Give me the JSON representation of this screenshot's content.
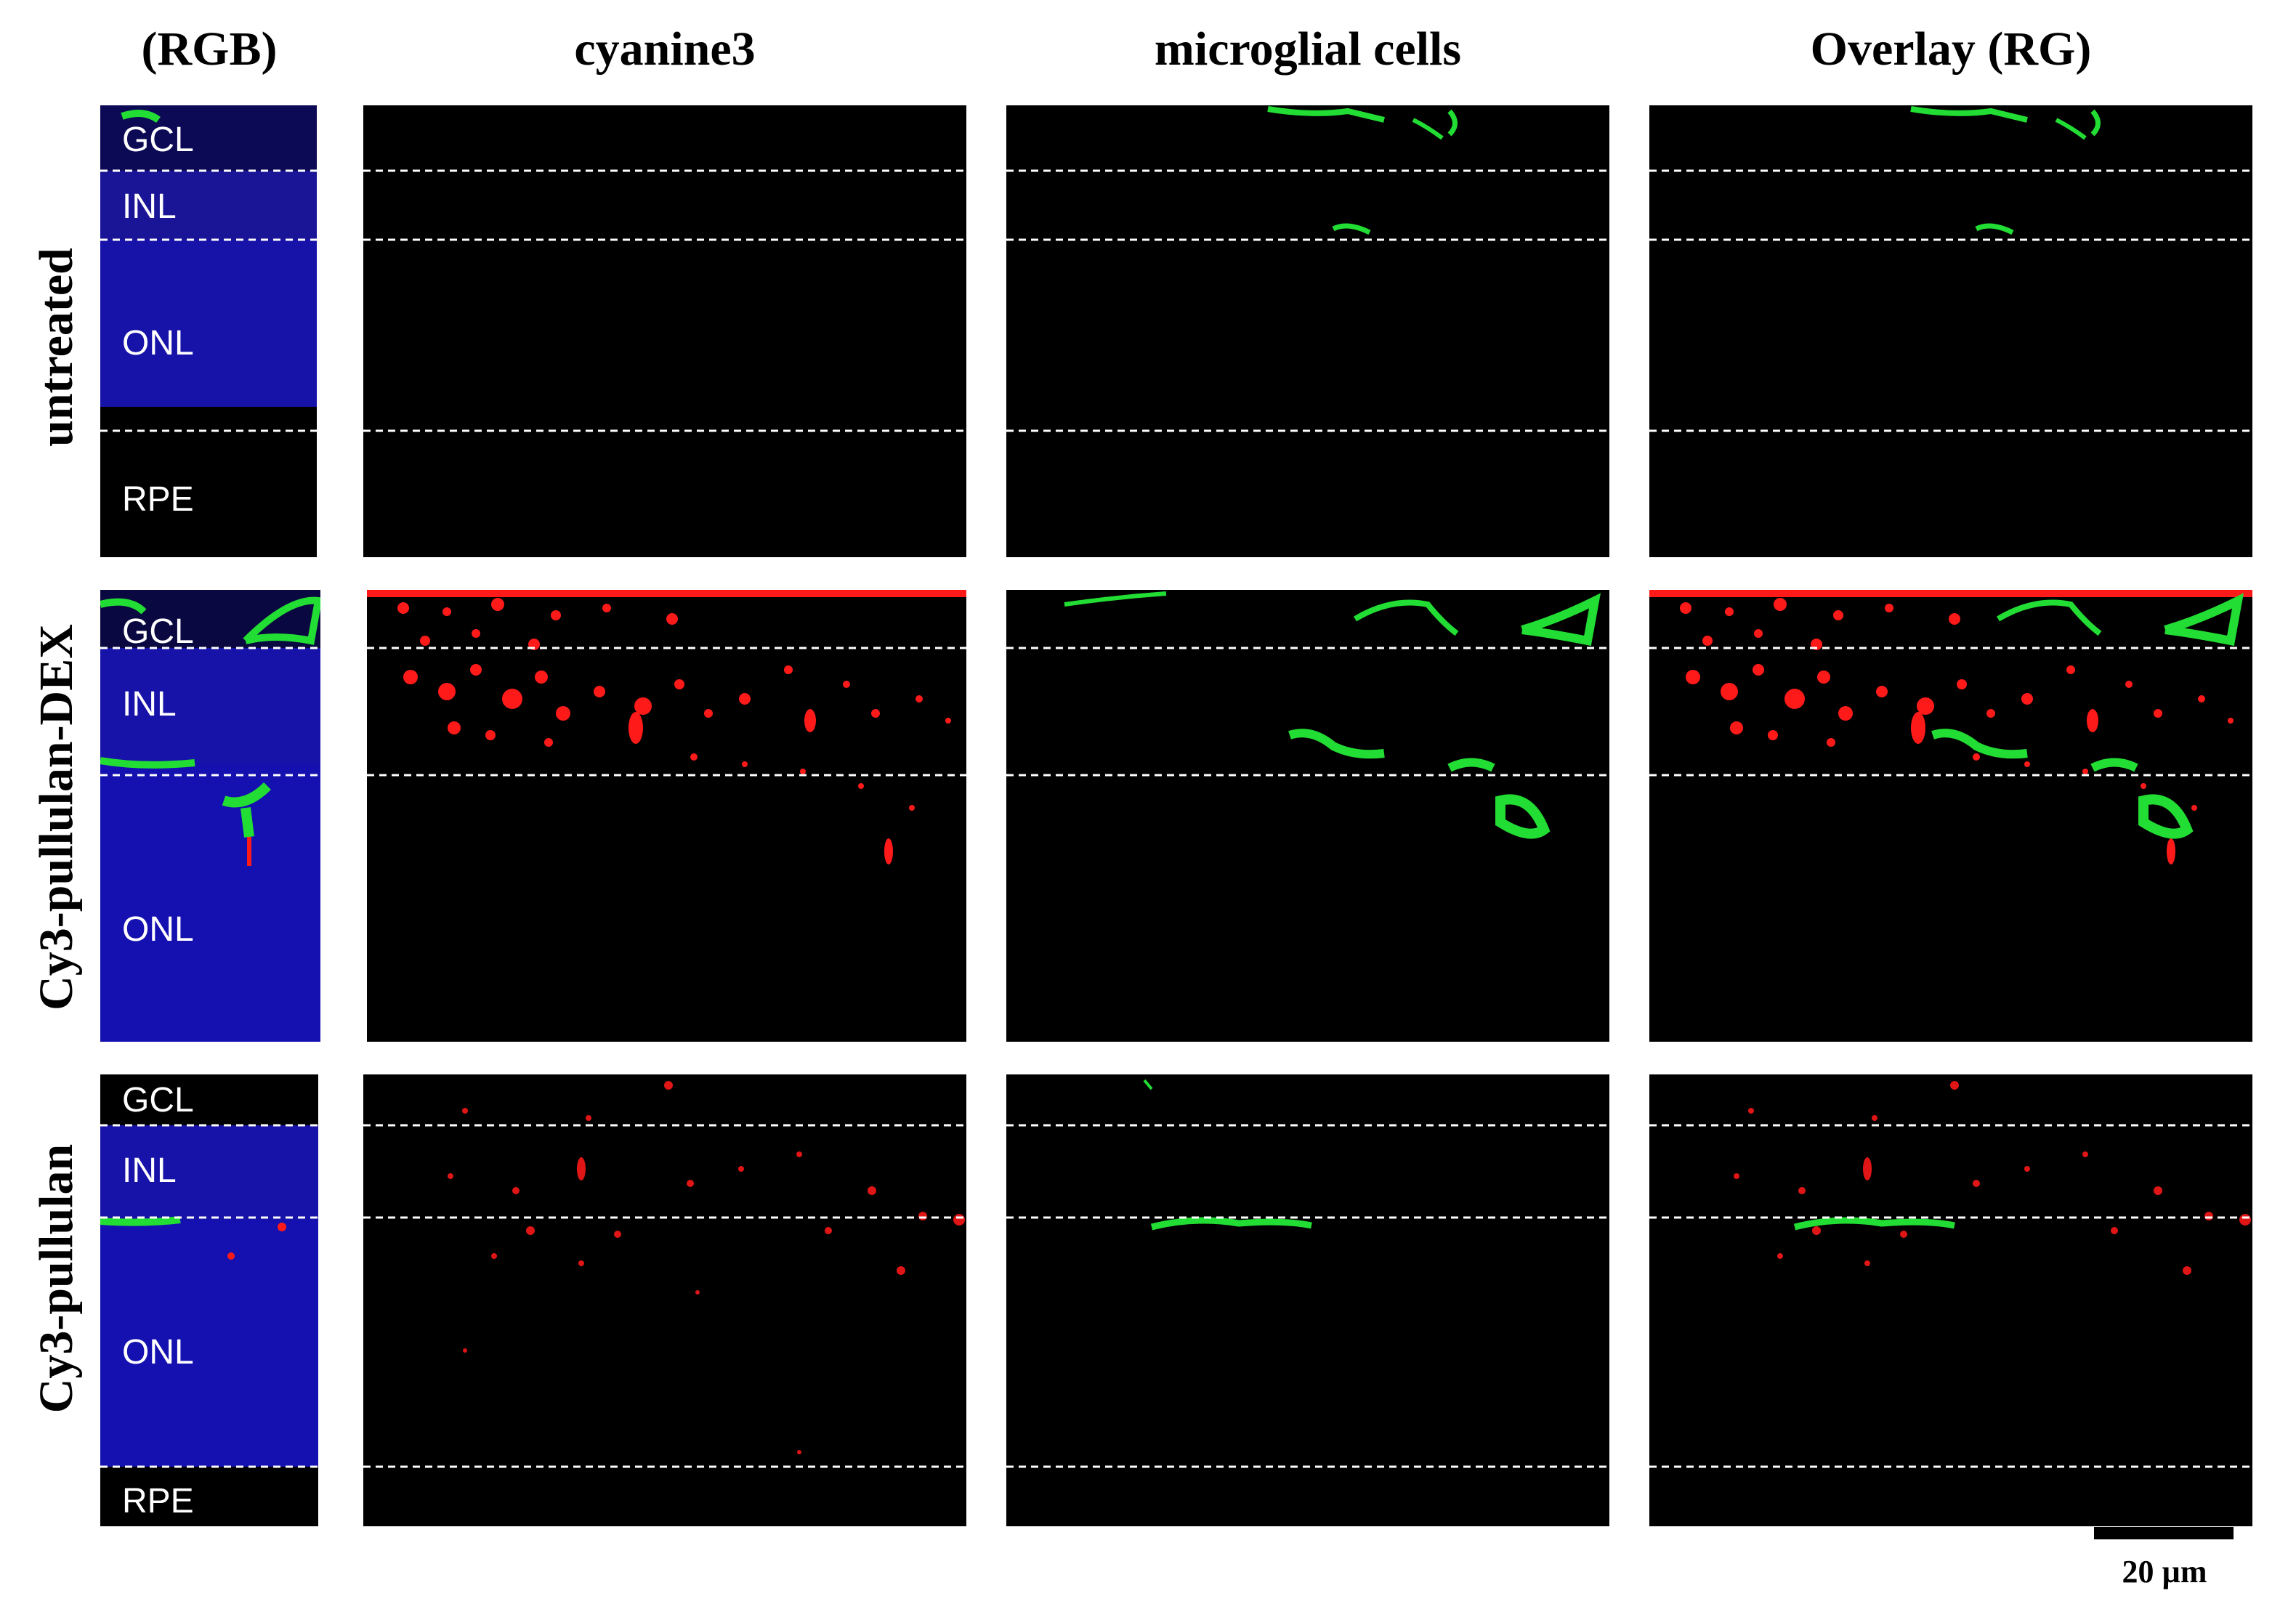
{
  "columns": [
    "(RGB)",
    "cyanine3",
    "microglial cells",
    "Overlay (RG)"
  ],
  "rows": [
    "untreated",
    "Cy3-pullulan-DEX",
    "Cy3-pullulan"
  ],
  "layer_labels": {
    "untreated": [
      "GCL",
      "INL",
      "ONL",
      "RPE"
    ],
    "dex": [
      "GCL",
      "INL",
      "ONL"
    ],
    "pullulan": [
      "GCL",
      "INL",
      "ONL",
      "RPE"
    ]
  },
  "scale_bar": "20 µm",
  "colors": {
    "nuclei": "#1410b0",
    "cy3": "#ff1a1a",
    "microglia": "#22dd33",
    "background": "#000000"
  }
}
